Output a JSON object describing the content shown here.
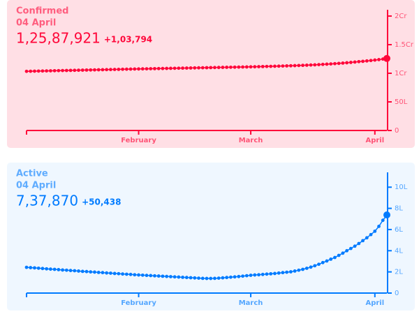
{
  "chart_data": [
    {
      "type": "line",
      "title": "Confirmed",
      "subtitle": "04 April",
      "headline": "1,25,87,921",
      "change": "+1,03,794",
      "color": "#ff073a",
      "background": "#ffdfe5",
      "values": [
        10340000,
        10355000,
        10370000,
        10385000,
        10400000,
        10415000,
        10430000,
        10445000,
        10460000,
        10475000,
        10490000,
        10505000,
        10520000,
        10535000,
        10550000,
        10565000,
        10580000,
        10595000,
        10610000,
        10625000,
        10640000,
        10655000,
        10670000,
        10685000,
        10700000,
        10715000,
        10730000,
        10745000,
        10757000,
        10770000,
        10783000,
        10796000,
        10809000,
        10822000,
        10835000,
        10848000,
        10861000,
        10874000,
        10887000,
        10900000,
        10913000,
        10926000,
        10939000,
        10952000,
        10965000,
        10978000,
        10991000,
        11004000,
        11017000,
        11030000,
        11043000,
        11056000,
        11069000,
        11082000,
        11095000,
        11108000,
        11124000,
        11140000,
        11157000,
        11174000,
        11192000,
        11210000,
        11229000,
        11248000,
        11268000,
        11290000,
        11313000,
        11337000,
        11362000,
        11388000,
        11416000,
        11446000,
        11478000,
        11513000,
        11552000,
        11592000,
        11635000,
        11681000,
        11728000,
        11781000,
        11840000,
        11902000,
        11965000,
        12033000,
        12089000,
        12157000,
        12229000,
        12310000,
        12393000,
        12484127,
        12587921
      ],
      "xlim": [
        0,
        90
      ],
      "xticks": [
        {
          "value": 28,
          "label": "February"
        },
        {
          "value": 56,
          "label": "March"
        },
        {
          "value": 87,
          "label": "April"
        }
      ],
      "ylim": [
        0,
        21100000
      ],
      "yticks": [
        0,
        {
          "value": 5000000,
          "label": "50L"
        },
        {
          "value": 10000000,
          "label": "1Cr"
        },
        {
          "value": 15000000,
          "label": "1.5Cr"
        },
        {
          "value": 20000000,
          "label": "2Cr"
        }
      ]
    },
    {
      "type": "line",
      "title": "Active",
      "subtitle": "04 April",
      "headline": "7,37,870",
      "change": "+50,438",
      "color": "#007bff",
      "background": "#eff7ff",
      "values": [
        243000,
        240000,
        238000,
        235000,
        232000,
        229000,
        226000,
        224000,
        221000,
        218000,
        216000,
        213000,
        211000,
        208000,
        205000,
        203000,
        200000,
        198000,
        195000,
        193000,
        190000,
        188000,
        185000,
        183000,
        180000,
        178000,
        176000,
        173000,
        171000,
        169000,
        167000,
        165000,
        163000,
        161000,
        159000,
        157000,
        155000,
        153000,
        151000,
        149000,
        147000,
        145000,
        143000,
        141000,
        139000,
        138000,
        138000,
        139000,
        141000,
        144000,
        147000,
        150000,
        153000,
        156000,
        160000,
        164000,
        168000,
        171000,
        173000,
        176000,
        179000,
        182000,
        185000,
        189000,
        193000,
        197000,
        201000,
        208000,
        216000,
        224000,
        234000,
        245000,
        258000,
        272000,
        288000,
        303000,
        320000,
        336000,
        356000,
        377000,
        400000,
        421000,
        443000,
        468000,
        495000,
        522000,
        552000,
        584000,
        630000,
        687432,
        737870
      ],
      "xlim": [
        0,
        90
      ],
      "xticks": [
        {
          "value": 28,
          "label": "February"
        },
        {
          "value": 56,
          "label": "March"
        },
        {
          "value": 87,
          "label": "April"
        }
      ],
      "ylim": [
        0,
        1140000
      ],
      "yticks": [
        0,
        {
          "value": 200000,
          "label": "2L"
        },
        {
          "value": 400000,
          "label": "4L"
        },
        {
          "value": 600000,
          "label": "6L"
        },
        {
          "value": 800000,
          "label": "8L"
        },
        {
          "value": 1000000,
          "label": "10L"
        }
      ]
    }
  ]
}
